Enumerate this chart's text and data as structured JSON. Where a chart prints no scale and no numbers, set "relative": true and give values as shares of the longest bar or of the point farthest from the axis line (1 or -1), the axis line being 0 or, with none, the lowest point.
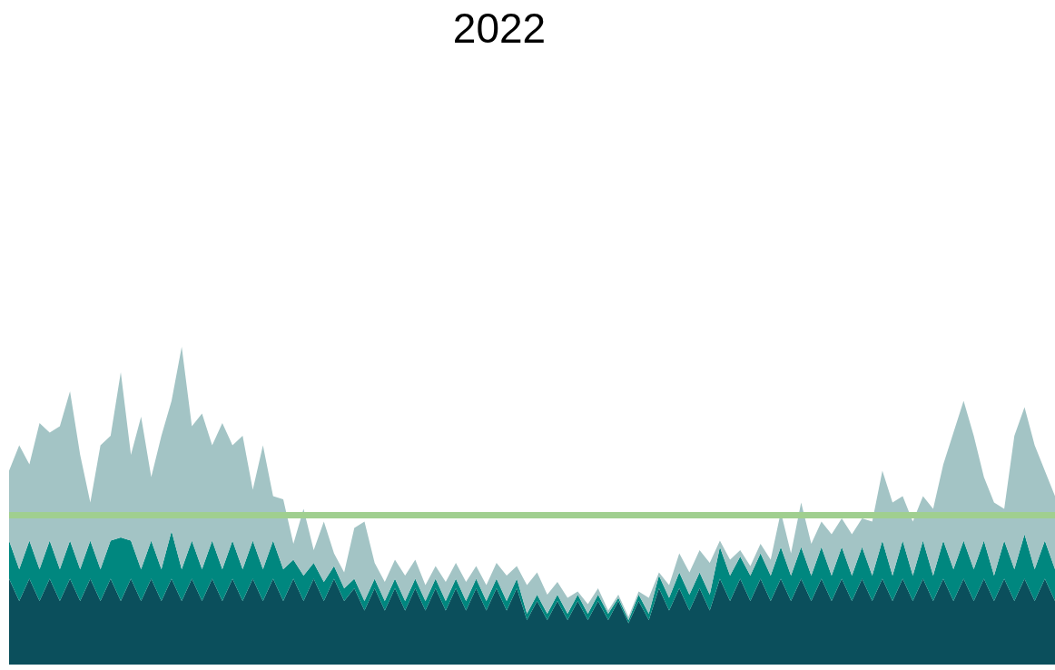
{
  "chart_data": {
    "type": "area",
    "title": "2022",
    "stacked": true,
    "relative": true,
    "categories": [
      null,
      null,
      null,
      null,
      null,
      null,
      null,
      null,
      null,
      null,
      null,
      null,
      null,
      null,
      null,
      null,
      null,
      null,
      null,
      null,
      null,
      null,
      null,
      null,
      null,
      null,
      null,
      null,
      null,
      null,
      null,
      null,
      null,
      null,
      null,
      null,
      null,
      null,
      null,
      null,
      null,
      null,
      null,
      null,
      null,
      null,
      null,
      null,
      null,
      null,
      null,
      null,
      null,
      null,
      null,
      null,
      null,
      null,
      null,
      null,
      null,
      null,
      null,
      null,
      null,
      null,
      null,
      null,
      null,
      null,
      null,
      null,
      null,
      null,
      null,
      null,
      null,
      null,
      null,
      null,
      null,
      null,
      null,
      null,
      null,
      null,
      null,
      null,
      null,
      null,
      null,
      null,
      null,
      null,
      null,
      null,
      null,
      null,
      null,
      null,
      null,
      null,
      null,
      null
    ],
    "series": [
      {
        "color": "#0b4f5c",
        "values": [
          0.27,
          0.2,
          0.27,
          0.2,
          0.27,
          0.2,
          0.27,
          0.2,
          0.27,
          0.2,
          0.27,
          0.2,
          0.27,
          0.2,
          0.27,
          0.2,
          0.27,
          0.2,
          0.27,
          0.2,
          0.27,
          0.2,
          0.27,
          0.2,
          0.27,
          0.2,
          0.27,
          0.2,
          0.27,
          0.2,
          0.27,
          0.2,
          0.27,
          0.2,
          0.24,
          0.17,
          0.24,
          0.17,
          0.24,
          0.17,
          0.24,
          0.17,
          0.24,
          0.17,
          0.24,
          0.17,
          0.24,
          0.17,
          0.24,
          0.17,
          0.24,
          0.14,
          0.2,
          0.14,
          0.2,
          0.14,
          0.2,
          0.14,
          0.2,
          0.14,
          0.2,
          0.13,
          0.2,
          0.14,
          0.24,
          0.17,
          0.24,
          0.17,
          0.24,
          0.17,
          0.27,
          0.2,
          0.27,
          0.2,
          0.27,
          0.2,
          0.27,
          0.2,
          0.27,
          0.2,
          0.27,
          0.2,
          0.27,
          0.2,
          0.27,
          0.2,
          0.27,
          0.2,
          0.27,
          0.2,
          0.27,
          0.2,
          0.27,
          0.2,
          0.27,
          0.2,
          0.27,
          0.2,
          0.27,
          0.2,
          0.27,
          0.2,
          0.27,
          0.2
        ]
      },
      {
        "color": "#00877f",
        "values": [
          0.12,
          0.1,
          0.12,
          0.1,
          0.12,
          0.1,
          0.12,
          0.1,
          0.12,
          0.1,
          0.12,
          0.2,
          0.12,
          0.1,
          0.12,
          0.1,
          0.15,
          0.1,
          0.12,
          0.1,
          0.12,
          0.1,
          0.12,
          0.1,
          0.12,
          0.1,
          0.12,
          0.1,
          0.06,
          0.08,
          0.05,
          0.06,
          0.04,
          0.04,
          0.03,
          0.03,
          0.03,
          0.03,
          0.03,
          0.03,
          0.03,
          0.03,
          0.03,
          0.03,
          0.03,
          0.03,
          0.03,
          0.03,
          0.03,
          0.03,
          0.03,
          0.02,
          0.02,
          0.02,
          0.02,
          0.02,
          0.02,
          0.02,
          0.02,
          0.02,
          0.01,
          0.01,
          0.02,
          0.02,
          0.04,
          0.04,
          0.05,
          0.05,
          0.05,
          0.05,
          0.1,
          0.08,
          0.07,
          0.08,
          0.08,
          0.08,
          0.1,
          0.08,
          0.1,
          0.08,
          0.1,
          0.08,
          0.1,
          0.08,
          0.1,
          0.08,
          0.12,
          0.08,
          0.12,
          0.08,
          0.12,
          0.08,
          0.12,
          0.1,
          0.12,
          0.1,
          0.12,
          0.08,
          0.12,
          0.1,
          0.14,
          0.1,
          0.12,
          0.1
        ]
      },
      {
        "color": "#a3c4c5",
        "values": [
          0.22,
          0.39,
          0.24,
          0.46,
          0.34,
          0.45,
          0.47,
          0.36,
          0.12,
          0.39,
          0.33,
          0.52,
          0.27,
          0.48,
          0.2,
          0.42,
          0.41,
          0.7,
          0.36,
          0.49,
          0.3,
          0.46,
          0.3,
          0.42,
          0.16,
          0.39,
          0.14,
          0.22,
          0.05,
          0.21,
          0.04,
          0.19,
          0.04,
          0.05,
          0.16,
          0.25,
          0.05,
          0.06,
          0.06,
          0.08,
          0.06,
          0.05,
          0.04,
          0.06,
          0.05,
          0.06,
          0.04,
          0.05,
          0.05,
          0.08,
          0.04,
          0.09,
          0.07,
          0.06,
          0.04,
          0.05,
          0.01,
          0.03,
          0.02,
          0.01,
          0.01,
          0.01,
          0.01,
          0.05,
          0.01,
          0.04,
          0.06,
          0.07,
          0.07,
          0.1,
          0.02,
          0.05,
          0.02,
          0.03,
          0.03,
          0.05,
          0.11,
          0.07,
          0.14,
          0.1,
          0.08,
          0.13,
          0.09,
          0.13,
          0.09,
          0.17,
          0.22,
          0.23,
          0.14,
          0.17,
          0.14,
          0.21,
          0.24,
          0.43,
          0.44,
          0.42,
          0.2,
          0.23,
          0.1,
          0.42,
          0.4,
          0.39,
          0.22,
          0.23
        ]
      }
    ],
    "ref_lines": [
      {
        "axis": "y",
        "value": 0.47,
        "color": "#a0cf8f"
      }
    ]
  }
}
